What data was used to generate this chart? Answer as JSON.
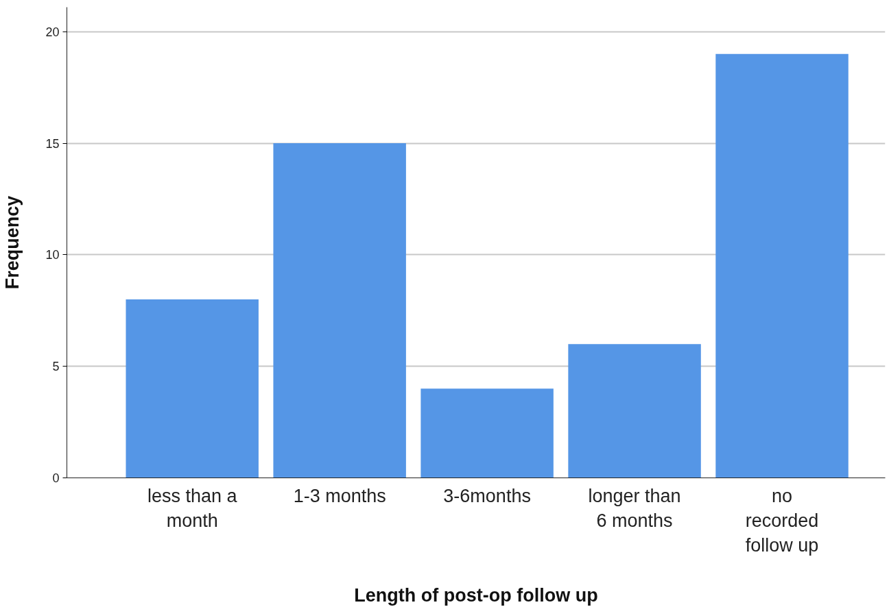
{
  "chart_data": {
    "type": "bar",
    "xlabel": "Length of post-op follow up",
    "ylabel": "Frequency",
    "categories": [
      "less than a\nmonth",
      "1-3 months",
      "3-6months",
      "longer than\n6 months",
      "no\nrecorded\nfollow up"
    ],
    "values": [
      8,
      15,
      4,
      6,
      19
    ],
    "color": "#5596e6",
    "ylim": [
      0,
      21.1
    ],
    "yticks": [
      0,
      5,
      10,
      15,
      20
    ],
    "grid": "y"
  }
}
